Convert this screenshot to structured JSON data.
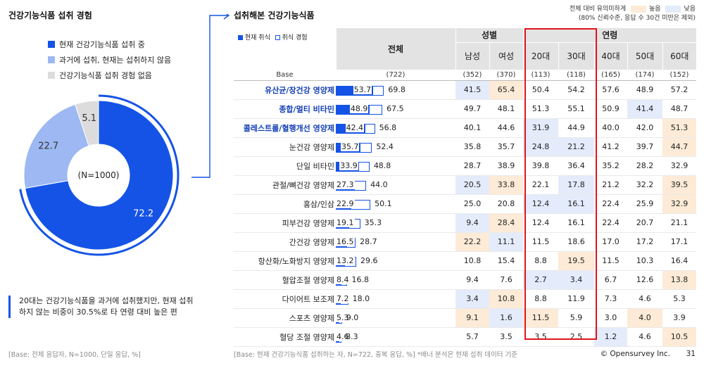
{
  "left": {
    "title": "건강기능식품 섭취 경험",
    "legend": [
      {
        "label": "현재 건강기능식품 섭취 중",
        "color": "#1453e6"
      },
      {
        "label": "과거에 섭취, 현재는 섭취하지 않음",
        "color": "#9db8f2"
      },
      {
        "label": "건강기능식품 섭취 경험 없음",
        "color": "#dcdcdc"
      }
    ],
    "center_label": "(N=1000)",
    "note": "20대는 건강기능식품을 과거에 섭취했지만, 현재 섭취하지 않는 비중이 30.5%로 타 연령 대비 높은 편",
    "base": "[Base: 전체 응답자, N=1000, 단일 응답, %]"
  },
  "right": {
    "title": "섭취해본 건강기능식품",
    "sig_legend_title": "전체 대비 유의미하게",
    "sig_high": "높음",
    "sig_low": "낮음",
    "sig_note": "(80% 신뢰수준, 응답 수 30건 미만은 제외)",
    "bar_legend_current": "현재 취식",
    "bar_legend_experience": "취식 경험",
    "col_total": "전체",
    "group_gender": "성별",
    "group_age": "연령",
    "col_male": "남성",
    "col_female": "여성",
    "col_20": "20대",
    "col_30": "30대",
    "col_40": "40대",
    "col_50": "50대",
    "col_60": "60대",
    "base_label": "Base",
    "base_total": "(722)",
    "base_male": "(352)",
    "base_female": "(370)",
    "base_20": "(113)",
    "base_30": "(118)",
    "base_40": "(165)",
    "base_50": "(174)",
    "base_60": "(152)",
    "footnote": "[Base: 현재 건강기능식품 섭취하는 자, N=722, 중복 응답, %] *배너 분석은 현재 섭취 데이터 기준",
    "copyright": "© Opensurvey Inc.",
    "page": "31"
  },
  "colors": {
    "accent": "#1453e6",
    "light_blue": "#9db8f2",
    "gray": "#dcdcdc",
    "high_bg": "#fdebd7",
    "low_bg": "#e4ebfb",
    "red": "#e0161c"
  },
  "chart_data": [
    {
      "type": "pie",
      "title": "건강기능식품 섭취 경험",
      "categories": [
        "현재 건강기능식품 섭취 중",
        "과거에 섭취, 현재는 섭취하지 않음",
        "건강기능식품 섭취 경험 없음"
      ],
      "values": [
        72.2,
        22.7,
        5.1
      ],
      "value_labels": [
        "72.2",
        "22.7",
        "5.1"
      ]
    },
    {
      "type": "bar",
      "title": "섭취해본 건강기능식품",
      "categories": [
        "유산균/장건강 영양제",
        "종합/멀티 비타민",
        "콜레스트롤/혈행개선 영양제",
        "눈건강 영양제",
        "단일 비타민",
        "관절/뼈건강 영양제",
        "홍삼/인삼",
        "피부건강 영양제",
        "간건강 영양제",
        "항산화/노화방지 영양제",
        "혈압조절 영양제",
        "다이어트 보조제",
        "스포츠 영양제",
        "혈당 조절 영양제"
      ],
      "bold": [
        true,
        true,
        true,
        false,
        false,
        false,
        false,
        false,
        false,
        false,
        false,
        false,
        false,
        false
      ],
      "series": [
        {
          "name": "현재 취식",
          "values": [
            53.7,
            48.9,
            42.4,
            35.7,
            33.9,
            27.3,
            22.9,
            19.1,
            16.5,
            13.2,
            8.4,
            7.2,
            5.3,
            4.6
          ],
          "labels": [
            "53.7",
            "48.9",
            "42.4",
            "35.7",
            "33.9",
            "27.3",
            "22.9",
            "19.1",
            "16.5",
            "13.2",
            "8.4",
            "7.2",
            "5.3",
            "4.6"
          ]
        },
        {
          "name": "취식 경험",
          "values": [
            69.8,
            67.5,
            56.8,
            52.4,
            48.8,
            44.0,
            50.1,
            35.3,
            28.7,
            29.6,
            16.8,
            18.0,
            9.0,
            8.3
          ],
          "labels": [
            "69.8",
            "67.5",
            "56.8",
            "52.4",
            "48.8",
            "44.0",
            "50.1",
            "35.3",
            "28.7",
            "29.6",
            "16.8",
            "18.0",
            "9.0",
            "8.3"
          ]
        }
      ],
      "table": {
        "columns": [
          "남성",
          "여성",
          "20대",
          "30대",
          "40대",
          "50대",
          "60대"
        ],
        "rows": [
          {
            "values": [
              "41.5",
              "65.4",
              "50.4",
              "54.2",
              "57.6",
              "48.9",
              "57.2"
            ],
            "sig": [
              "lo",
              "hi",
              "",
              "",
              "",
              "",
              ""
            ]
          },
          {
            "values": [
              "49.7",
              "48.1",
              "51.3",
              "55.1",
              "50.9",
              "41.4",
              "48.7"
            ],
            "sig": [
              "",
              "",
              "",
              "",
              "",
              "lo",
              ""
            ]
          },
          {
            "values": [
              "40.1",
              "44.6",
              "31.9",
              "44.9",
              "40.0",
              "42.0",
              "51.3"
            ],
            "sig": [
              "",
              "",
              "lo",
              "",
              "",
              "",
              "hi"
            ]
          },
          {
            "values": [
              "35.8",
              "35.7",
              "24.8",
              "21.2",
              "41.2",
              "39.7",
              "44.7"
            ],
            "sig": [
              "",
              "",
              "lo",
              "lo",
              "",
              "",
              "hi"
            ]
          },
          {
            "values": [
              "28.7",
              "38.9",
              "39.8",
              "36.4",
              "35.2",
              "28.2",
              "32.9"
            ],
            "sig": [
              "",
              "",
              "",
              "",
              "",
              "",
              ""
            ]
          },
          {
            "values": [
              "20.5",
              "33.8",
              "22.1",
              "17.8",
              "21.2",
              "32.2",
              "39.5"
            ],
            "sig": [
              "lo",
              "hi",
              "",
              "lo",
              "",
              "",
              "hi"
            ]
          },
          {
            "values": [
              "25.0",
              "20.8",
              "12.4",
              "16.1",
              "22.4",
              "25.9",
              "32.9"
            ],
            "sig": [
              "",
              "",
              "lo",
              "lo",
              "",
              "",
              "hi"
            ]
          },
          {
            "values": [
              "9.4",
              "28.4",
              "12.4",
              "16.1",
              "22.4",
              "20.7",
              "21.1"
            ],
            "sig": [
              "lo",
              "hi",
              "",
              "",
              "",
              "",
              ""
            ]
          },
          {
            "values": [
              "22.2",
              "11.1",
              "11.5",
              "18.6",
              "17.0",
              "17.2",
              "17.1"
            ],
            "sig": [
              "hi",
              "lo",
              "",
              "",
              "",
              "",
              ""
            ]
          },
          {
            "values": [
              "10.8",
              "15.4",
              "8.8",
              "19.5",
              "11.5",
              "10.3",
              "16.4"
            ],
            "sig": [
              "",
              "",
              "",
              "hi",
              "",
              "",
              ""
            ]
          },
          {
            "values": [
              "9.4",
              "7.6",
              "2.7",
              "3.4",
              "6.7",
              "12.6",
              "13.8"
            ],
            "sig": [
              "",
              "",
              "lo",
              "lo",
              "",
              "",
              "hi"
            ]
          },
          {
            "values": [
              "3.4",
              "10.8",
              "8.8",
              "11.9",
              "7.3",
              "4.6",
              "5.3"
            ],
            "sig": [
              "lo",
              "hi",
              "",
              "",
              "",
              "",
              ""
            ]
          },
          {
            "values": [
              "9.1",
              "1.6",
              "11.5",
              "5.9",
              "3.0",
              "4.0",
              "3.9"
            ],
            "sig": [
              "hi",
              "lo",
              "hi",
              "",
              "",
              "hi",
              ""
            ]
          },
          {
            "values": [
              "5.7",
              "3.5",
              "3.5",
              "2.5",
              "1.2",
              "4.6",
              "10.5"
            ],
            "sig": [
              "",
              "",
              "",
              "",
              "lo",
              "",
              "hi"
            ]
          }
        ]
      }
    }
  ]
}
